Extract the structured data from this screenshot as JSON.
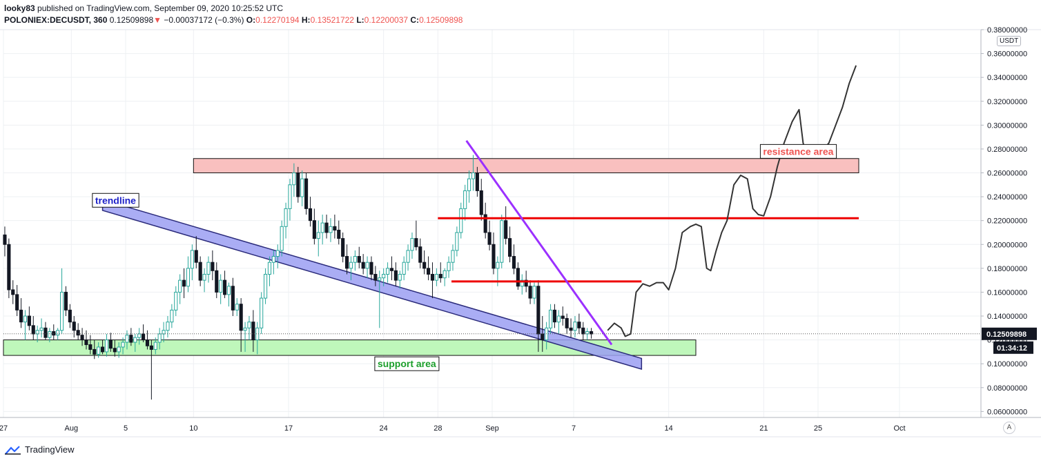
{
  "header": {
    "user": "looky83",
    "published": "published on TradingView.com, September 09, 2020 10:25:52 UTC",
    "symbol": "POLONIEX:DECUSDT, 360",
    "last": "0.12509898",
    "arrow": "▼",
    "change": "−0.00037172 (−0.3%)",
    "o_label": "O:",
    "o_value": "0.12270194",
    "h_label": "H:",
    "h_value": "0.13521722",
    "l_label": "L:",
    "l_value": "0.12200037",
    "c_label": "C:",
    "c_value": "0.12509898"
  },
  "price_axis": {
    "currency": "USDT",
    "last_price": "0.12509898",
    "countdown": "01:34:12"
  },
  "footer": {
    "brand": "TradingView",
    "corner": "A"
  },
  "colors": {
    "up": "#26a69a",
    "down": "#131722",
    "accent_red": "#ef5350"
  },
  "chart_data": {
    "type": "candlestick",
    "symbol": "POLONIEX:DECUSDT",
    "interval": "360",
    "ylim": [
      0.055,
      0.38
    ],
    "y_ticks": [
      0.06,
      0.08,
      0.1,
      0.12,
      0.14,
      0.16,
      0.18,
      0.2,
      0.22,
      0.24,
      0.26,
      0.28,
      0.3,
      0.32,
      0.34,
      0.36,
      0.38
    ],
    "y_tick_labels": [
      "0.06000000",
      "0.08000000",
      "0.10000000",
      "0.12000000",
      "0.14000000",
      "0.16000000",
      "0.18000000",
      "0.20000000",
      "0.22000000",
      "0.24000000",
      "0.26000000",
      "0.28000000",
      "0.30000000",
      "0.32000000",
      "0.34000000",
      "0.36000000",
      "0.38000000"
    ],
    "x_day_range": [
      -5,
      67
    ],
    "x_ticks": [
      {
        "day": -5,
        "label": "27"
      },
      {
        "day": 0,
        "label": "Aug"
      },
      {
        "day": 4,
        "label": "5"
      },
      {
        "day": 9,
        "label": "10"
      },
      {
        "day": 16,
        "label": "17"
      },
      {
        "day": 23,
        "label": "24"
      },
      {
        "day": 27,
        "label": "28"
      },
      {
        "day": 31,
        "label": "Sep"
      },
      {
        "day": 37,
        "label": "7"
      },
      {
        "day": 44,
        "label": "14"
      },
      {
        "day": 51,
        "label": "21"
      },
      {
        "day": 55,
        "label": "25"
      },
      {
        "day": 61,
        "label": "Oct"
      }
    ],
    "candles": [
      [
        -4.9,
        0.208,
        0.215,
        0.19,
        0.2
      ],
      [
        -4.6,
        0.2,
        0.205,
        0.155,
        0.162
      ],
      [
        -4.3,
        0.162,
        0.17,
        0.15,
        0.158
      ],
      [
        -4.0,
        0.158,
        0.166,
        0.14,
        0.145
      ],
      [
        -3.7,
        0.145,
        0.155,
        0.13,
        0.135
      ],
      [
        -3.4,
        0.135,
        0.145,
        0.12,
        0.14
      ],
      [
        -3.1,
        0.14,
        0.148,
        0.128,
        0.132
      ],
      [
        -2.8,
        0.132,
        0.14,
        0.12,
        0.125
      ],
      [
        -2.5,
        0.125,
        0.132,
        0.118,
        0.128
      ],
      [
        -2.2,
        0.128,
        0.138,
        0.122,
        0.13
      ],
      [
        -1.9,
        0.13,
        0.135,
        0.12,
        0.122
      ],
      [
        -1.6,
        0.122,
        0.13,
        0.118,
        0.127
      ],
      [
        -1.3,
        0.127,
        0.133,
        0.12,
        0.124
      ],
      [
        -1.0,
        0.124,
        0.13,
        0.12,
        0.128
      ],
      [
        -0.7,
        0.128,
        0.18,
        0.125,
        0.16
      ],
      [
        -0.4,
        0.16,
        0.165,
        0.14,
        0.145
      ],
      [
        -0.1,
        0.145,
        0.15,
        0.13,
        0.135
      ],
      [
        0.2,
        0.135,
        0.14,
        0.122,
        0.128
      ],
      [
        0.5,
        0.128,
        0.134,
        0.12,
        0.124
      ],
      [
        0.8,
        0.124,
        0.13,
        0.115,
        0.12
      ],
      [
        1.1,
        0.12,
        0.128,
        0.112,
        0.116
      ],
      [
        1.4,
        0.116,
        0.124,
        0.108,
        0.112
      ],
      [
        1.7,
        0.112,
        0.12,
        0.104,
        0.108
      ],
      [
        2.0,
        0.108,
        0.118,
        0.105,
        0.114
      ],
      [
        2.3,
        0.114,
        0.12,
        0.108,
        0.11
      ],
      [
        2.6,
        0.11,
        0.125,
        0.106,
        0.12
      ],
      [
        2.9,
        0.12,
        0.126,
        0.11,
        0.113
      ],
      [
        3.2,
        0.113,
        0.12,
        0.106,
        0.11
      ],
      [
        3.5,
        0.11,
        0.118,
        0.105,
        0.114
      ],
      [
        3.8,
        0.114,
        0.122,
        0.108,
        0.118
      ],
      [
        4.1,
        0.118,
        0.128,
        0.112,
        0.124
      ],
      [
        4.4,
        0.124,
        0.13,
        0.115,
        0.118
      ],
      [
        4.7,
        0.118,
        0.125,
        0.11,
        0.122
      ],
      [
        5.0,
        0.122,
        0.13,
        0.116,
        0.125
      ],
      [
        5.3,
        0.125,
        0.133,
        0.118,
        0.12
      ],
      [
        5.6,
        0.12,
        0.128,
        0.112,
        0.115
      ],
      [
        5.9,
        0.115,
        0.12,
        0.07,
        0.112
      ],
      [
        6.2,
        0.112,
        0.122,
        0.108,
        0.118
      ],
      [
        6.5,
        0.118,
        0.13,
        0.112,
        0.125
      ],
      [
        6.8,
        0.125,
        0.135,
        0.118,
        0.128
      ],
      [
        7.1,
        0.128,
        0.14,
        0.122,
        0.135
      ],
      [
        7.4,
        0.135,
        0.15,
        0.13,
        0.145
      ],
      [
        7.7,
        0.145,
        0.165,
        0.14,
        0.16
      ],
      [
        8.0,
        0.16,
        0.175,
        0.15,
        0.17
      ],
      [
        8.3,
        0.17,
        0.18,
        0.155,
        0.165
      ],
      [
        8.6,
        0.165,
        0.19,
        0.16,
        0.18
      ],
      [
        8.9,
        0.18,
        0.2,
        0.17,
        0.195
      ],
      [
        9.2,
        0.195,
        0.207,
        0.18,
        0.185
      ],
      [
        9.5,
        0.185,
        0.19,
        0.165,
        0.17
      ],
      [
        9.8,
        0.17,
        0.18,
        0.16,
        0.175
      ],
      [
        10.1,
        0.175,
        0.19,
        0.168,
        0.185
      ],
      [
        10.4,
        0.185,
        0.195,
        0.17,
        0.178
      ],
      [
        10.7,
        0.178,
        0.185,
        0.155,
        0.16
      ],
      [
        11.0,
        0.16,
        0.175,
        0.15,
        0.17
      ],
      [
        11.3,
        0.17,
        0.178,
        0.155,
        0.158
      ],
      [
        11.6,
        0.158,
        0.168,
        0.148,
        0.165
      ],
      [
        11.9,
        0.165,
        0.172,
        0.14,
        0.145
      ],
      [
        12.2,
        0.145,
        0.155,
        0.14,
        0.15
      ],
      [
        12.5,
        0.15,
        0.155,
        0.11,
        0.128
      ],
      [
        12.8,
        0.128,
        0.135,
        0.11,
        0.13
      ],
      [
        13.1,
        0.13,
        0.14,
        0.12,
        0.135
      ],
      [
        13.4,
        0.135,
        0.145,
        0.11,
        0.12
      ],
      [
        13.7,
        0.12,
        0.135,
        0.108,
        0.13
      ],
      [
        14.0,
        0.13,
        0.16,
        0.125,
        0.155
      ],
      [
        14.3,
        0.155,
        0.18,
        0.15,
        0.175
      ],
      [
        14.6,
        0.175,
        0.19,
        0.165,
        0.185
      ],
      [
        14.9,
        0.185,
        0.195,
        0.175,
        0.19
      ],
      [
        15.2,
        0.19,
        0.2,
        0.18,
        0.195
      ],
      [
        15.5,
        0.195,
        0.22,
        0.19,
        0.215
      ],
      [
        15.8,
        0.215,
        0.235,
        0.205,
        0.23
      ],
      [
        16.1,
        0.23,
        0.255,
        0.22,
        0.25
      ],
      [
        16.4,
        0.25,
        0.268,
        0.24,
        0.26
      ],
      [
        16.7,
        0.26,
        0.265,
        0.235,
        0.24
      ],
      [
        17.0,
        0.24,
        0.262,
        0.232,
        0.255
      ],
      [
        17.3,
        0.255,
        0.26,
        0.225,
        0.23
      ],
      [
        17.6,
        0.23,
        0.24,
        0.215,
        0.22
      ],
      [
        17.9,
        0.22,
        0.23,
        0.2,
        0.205
      ],
      [
        18.2,
        0.205,
        0.22,
        0.19,
        0.21
      ],
      [
        18.5,
        0.21,
        0.225,
        0.2,
        0.218
      ],
      [
        18.8,
        0.218,
        0.225,
        0.205,
        0.21
      ],
      [
        19.1,
        0.21,
        0.222,
        0.202,
        0.215
      ],
      [
        19.4,
        0.215,
        0.225,
        0.205,
        0.212
      ],
      [
        19.7,
        0.212,
        0.22,
        0.2,
        0.205
      ],
      [
        20.0,
        0.205,
        0.21,
        0.185,
        0.19
      ],
      [
        20.3,
        0.19,
        0.2,
        0.175,
        0.18
      ],
      [
        20.6,
        0.18,
        0.19,
        0.17,
        0.185
      ],
      [
        20.9,
        0.185,
        0.195,
        0.178,
        0.19
      ],
      [
        21.2,
        0.19,
        0.198,
        0.18,
        0.185
      ],
      [
        21.5,
        0.185,
        0.192,
        0.175,
        0.18
      ],
      [
        21.8,
        0.18,
        0.19,
        0.172,
        0.185
      ],
      [
        22.1,
        0.185,
        0.19,
        0.17,
        0.175
      ],
      [
        22.4,
        0.175,
        0.182,
        0.165,
        0.17
      ],
      [
        22.7,
        0.17,
        0.178,
        0.13,
        0.172
      ],
      [
        23.0,
        0.172,
        0.18,
        0.165,
        0.175
      ],
      [
        23.3,
        0.175,
        0.185,
        0.168,
        0.18
      ],
      [
        23.6,
        0.18,
        0.19,
        0.17,
        0.178
      ],
      [
        23.9,
        0.178,
        0.185,
        0.165,
        0.17
      ],
      [
        24.2,
        0.17,
        0.178,
        0.163,
        0.175
      ],
      [
        24.5,
        0.175,
        0.19,
        0.17,
        0.185
      ],
      [
        24.8,
        0.185,
        0.2,
        0.178,
        0.195
      ],
      [
        25.1,
        0.195,
        0.21,
        0.188,
        0.205
      ],
      [
        25.4,
        0.205,
        0.22,
        0.195,
        0.198
      ],
      [
        25.7,
        0.198,
        0.205,
        0.18,
        0.185
      ],
      [
        26.0,
        0.185,
        0.195,
        0.175,
        0.18
      ],
      [
        26.3,
        0.18,
        0.19,
        0.17,
        0.175
      ],
      [
        26.6,
        0.175,
        0.185,
        0.155,
        0.17
      ],
      [
        26.9,
        0.17,
        0.18,
        0.165,
        0.175
      ],
      [
        27.2,
        0.175,
        0.185,
        0.168,
        0.172
      ],
      [
        27.5,
        0.172,
        0.18,
        0.165,
        0.178
      ],
      [
        27.8,
        0.178,
        0.19,
        0.172,
        0.185
      ],
      [
        28.1,
        0.185,
        0.2,
        0.178,
        0.195
      ],
      [
        28.4,
        0.195,
        0.215,
        0.19,
        0.21
      ],
      [
        28.7,
        0.21,
        0.235,
        0.205,
        0.23
      ],
      [
        29.0,
        0.23,
        0.25,
        0.22,
        0.245
      ],
      [
        29.3,
        0.245,
        0.262,
        0.235,
        0.255
      ],
      [
        29.6,
        0.255,
        0.275,
        0.245,
        0.26
      ],
      [
        29.9,
        0.26,
        0.265,
        0.24,
        0.245
      ],
      [
        30.2,
        0.245,
        0.255,
        0.22,
        0.225
      ],
      [
        30.5,
        0.225,
        0.235,
        0.205,
        0.21
      ],
      [
        30.8,
        0.21,
        0.22,
        0.195,
        0.2
      ],
      [
        31.1,
        0.2,
        0.21,
        0.175,
        0.18
      ],
      [
        31.4,
        0.18,
        0.19,
        0.165,
        0.185
      ],
      [
        31.7,
        0.185,
        0.225,
        0.18,
        0.22
      ],
      [
        32.0,
        0.22,
        0.232,
        0.2,
        0.205
      ],
      [
        32.3,
        0.205,
        0.215,
        0.185,
        0.19
      ],
      [
        32.6,
        0.19,
        0.2,
        0.175,
        0.18
      ],
      [
        32.9,
        0.18,
        0.185,
        0.162,
        0.165
      ],
      [
        33.2,
        0.165,
        0.175,
        0.158,
        0.17
      ],
      [
        33.5,
        0.17,
        0.178,
        0.16,
        0.165
      ],
      [
        33.8,
        0.165,
        0.17,
        0.15,
        0.155
      ],
      [
        34.1,
        0.155,
        0.168,
        0.15,
        0.165
      ],
      [
        34.4,
        0.165,
        0.17,
        0.11,
        0.125
      ],
      [
        34.7,
        0.125,
        0.14,
        0.11,
        0.12
      ],
      [
        35.0,
        0.12,
        0.135,
        0.112,
        0.13
      ],
      [
        35.3,
        0.13,
        0.15,
        0.125,
        0.145
      ],
      [
        35.6,
        0.145,
        0.15,
        0.13,
        0.135
      ],
      [
        35.9,
        0.135,
        0.145,
        0.125,
        0.14
      ],
      [
        36.2,
        0.14,
        0.148,
        0.132,
        0.138
      ],
      [
        36.5,
        0.138,
        0.142,
        0.125,
        0.13
      ],
      [
        36.8,
        0.13,
        0.138,
        0.122,
        0.128
      ],
      [
        37.1,
        0.128,
        0.14,
        0.122,
        0.135
      ],
      [
        37.4,
        0.135,
        0.142,
        0.125,
        0.13
      ],
      [
        37.7,
        0.13,
        0.135,
        0.12,
        0.125
      ],
      [
        38.0,
        0.125,
        0.13,
        0.12,
        0.127
      ],
      [
        38.3,
        0.127,
        0.13,
        0.121,
        0.125
      ]
    ],
    "zones": [
      {
        "name": "resistance area",
        "from_day": 9,
        "to_day": 58,
        "top": 0.272,
        "bottom": 0.26,
        "fill": "#f9c0bf",
        "stroke": "#111111"
      },
      {
        "name": "support area",
        "from_day": -5,
        "to_day": 46,
        "top": 0.12,
        "bottom": 0.107,
        "fill": "#bff7bb",
        "stroke": "#111111"
      }
    ],
    "hlines": [
      {
        "from_day": 27,
        "to_day": 58,
        "price": 0.222,
        "color": "#ee0000"
      },
      {
        "from_day": 28,
        "to_day": 42,
        "price": 0.169,
        "color": "#ee0000"
      }
    ],
    "trendline_channel": {
      "from": [
        2.3,
        0.233
      ],
      "to": [
        42,
        0.1
      ],
      "width": 0.009,
      "fill": "#9b9ff2",
      "stroke": "#2a2a7a"
    },
    "purple_line": {
      "from": [
        29.1,
        0.287
      ],
      "to": [
        39.8,
        0.116
      ],
      "color": "#9b30ff"
    },
    "projection": [
      [
        39.5,
        0.128
      ],
      [
        40.0,
        0.134
      ],
      [
        40.5,
        0.13
      ],
      [
        40.8,
        0.123
      ],
      [
        41.2,
        0.125
      ],
      [
        41.6,
        0.16
      ],
      [
        42.1,
        0.167
      ],
      [
        42.6,
        0.165
      ],
      [
        43.1,
        0.168
      ],
      [
        43.6,
        0.168
      ],
      [
        44.0,
        0.162
      ],
      [
        44.5,
        0.18
      ],
      [
        45.0,
        0.21
      ],
      [
        45.6,
        0.215
      ],
      [
        46.0,
        0.217
      ],
      [
        46.4,
        0.215
      ],
      [
        46.8,
        0.18
      ],
      [
        47.1,
        0.178
      ],
      [
        47.5,
        0.195
      ],
      [
        47.9,
        0.21
      ],
      [
        48.3,
        0.22
      ],
      [
        48.8,
        0.25
      ],
      [
        49.3,
        0.258
      ],
      [
        49.8,
        0.255
      ],
      [
        50.2,
        0.23
      ],
      [
        50.6,
        0.225
      ],
      [
        51.0,
        0.224
      ],
      [
        51.5,
        0.24
      ],
      [
        52.0,
        0.265
      ],
      [
        52.5,
        0.285
      ],
      [
        53.1,
        0.303
      ],
      [
        53.6,
        0.313
      ],
      [
        53.9,
        0.285
      ],
      [
        54.2,
        0.275
      ],
      [
        54.7,
        0.28
      ],
      [
        55.2,
        0.277
      ],
      [
        55.8,
        0.285
      ],
      [
        56.3,
        0.3
      ],
      [
        56.8,
        0.315
      ],
      [
        57.3,
        0.335
      ],
      [
        57.8,
        0.35
      ]
    ],
    "annotations": [
      {
        "text": "trendline",
        "day": 1.5,
        "price": 0.237,
        "color": "#1e22c8"
      },
      {
        "text": "resistance area",
        "day": 50.7,
        "price": 0.278,
        "color": "#ef5350"
      },
      {
        "text": "support area",
        "day": 22.3,
        "price": 0.1,
        "color": "#1a9e2a"
      }
    ],
    "last_price": 0.12509898
  }
}
